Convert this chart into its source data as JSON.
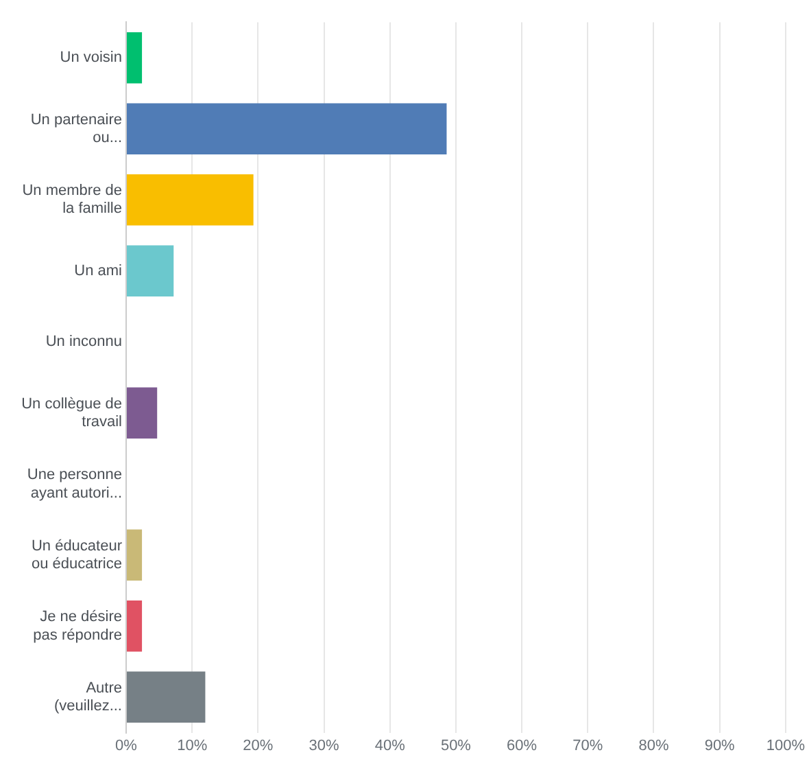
{
  "chart_data": {
    "type": "bar",
    "orientation": "horizontal",
    "categories": [
      "Un voisin",
      "Un partenaire ou...",
      "Un membre de la famille",
      "Un ami",
      "Un inconnu",
      "Un collègue de travail",
      "Une personne ayant autori...",
      "Un éducateur ou éducatrice",
      "Je ne désire pas répondre",
      "Autre (veuillez..."
    ],
    "values": [
      2.4,
      48.6,
      19.3,
      7.2,
      0,
      4.7,
      0,
      2.4,
      2.4,
      12.0
    ],
    "colors": [
      "#00bf6f",
      "#507cb6",
      "#f9be00",
      "#6bc8cd",
      "#957e8e",
      "#7d5b91",
      "#f05b24",
      "#c9b977",
      "#e05263",
      "#768086"
    ],
    "xlim": [
      0,
      100
    ],
    "xticks": [
      {
        "value": 0,
        "label": "0%"
      },
      {
        "value": 10,
        "label": "10%"
      },
      {
        "value": 20,
        "label": "20%"
      },
      {
        "value": 30,
        "label": "30%"
      },
      {
        "value": 40,
        "label": "40%"
      },
      {
        "value": 50,
        "label": "50%"
      },
      {
        "value": 60,
        "label": "60%"
      },
      {
        "value": 70,
        "label": "70%"
      },
      {
        "value": 80,
        "label": "80%"
      },
      {
        "value": 90,
        "label": "90%"
      },
      {
        "value": 100,
        "label": "100%"
      }
    ],
    "grid": "x"
  }
}
